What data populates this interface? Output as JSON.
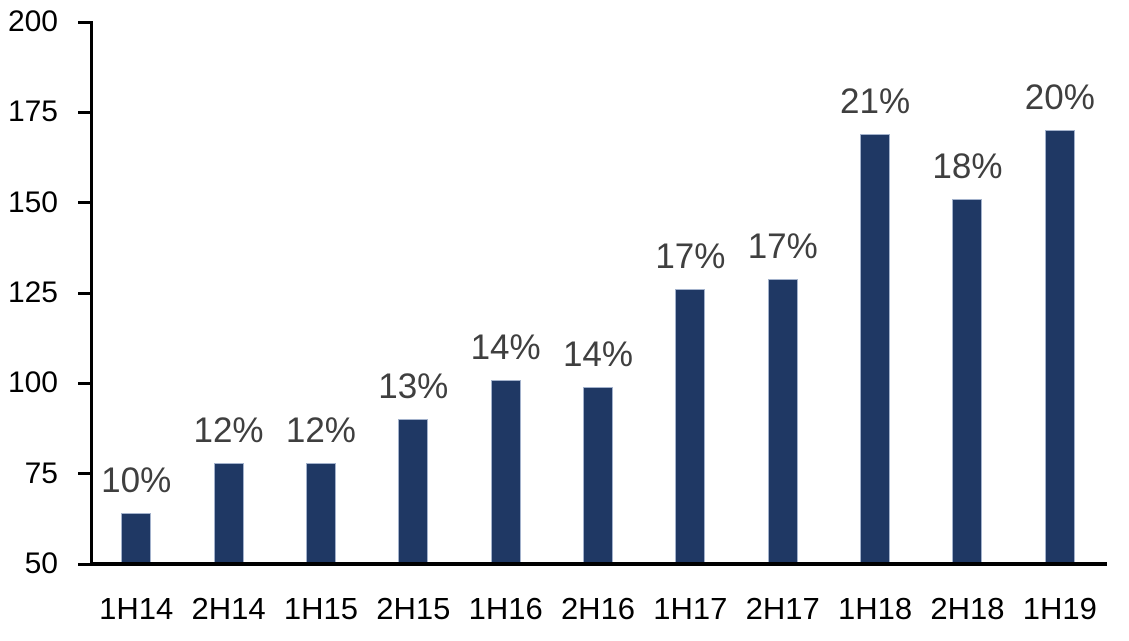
{
  "chart_data": {
    "type": "bar",
    "title": "",
    "xlabel": "",
    "ylabel": "",
    "categories": [
      "1H14",
      "2H14",
      "1H15",
      "2H15",
      "1H16",
      "2H16",
      "1H17",
      "2H17",
      "1H18",
      "2H18",
      "1H19"
    ],
    "values": [
      64,
      78,
      78,
      90,
      101,
      99,
      126,
      129,
      169,
      151,
      170
    ],
    "data_labels": [
      "10%",
      "12%",
      "12%",
      "13%",
      "14%",
      "14%",
      "17%",
      "17%",
      "21%",
      "18%",
      "20%"
    ],
    "ylim": [
      50,
      200
    ],
    "yticks": [
      50,
      75,
      100,
      125,
      150,
      175,
      200
    ],
    "grid": false,
    "legend_position": "none",
    "colors": {
      "bar_fill": "#1F3864",
      "bar_border": "#A3B2CC",
      "data_label": "#3F3F3F",
      "axis": "#000000",
      "background": "#FFFFFF"
    }
  }
}
